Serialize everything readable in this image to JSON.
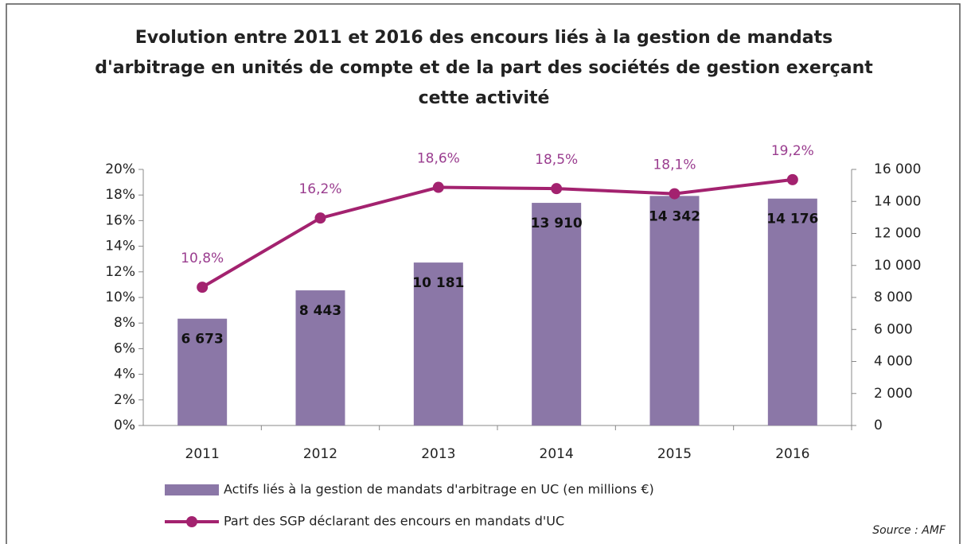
{
  "chart_data": {
    "type": "bar_line",
    "title": [
      "Evolution entre 2011  et 2016  des encours liés à  la gestion de mandats",
      "d'arbitrage en unités de compte et de la part des sociétés de gestion exerçant",
      "cette activité"
    ],
    "categories": [
      "2011",
      "2012",
      "2013",
      "2014",
      "2015",
      "2016"
    ],
    "series": [
      {
        "name": "Actifs liés à la gestion de mandats d'arbitrage en UC (en millions €)",
        "type": "bar",
        "axis": "y2",
        "color": "#8b77a7",
        "values": [
          6673,
          8443,
          10181,
          13910,
          14342,
          14176
        ],
        "value_labels": [
          "6 673",
          "8 443",
          "10 181",
          "13 910",
          "14 342",
          "14 176"
        ]
      },
      {
        "name": "Part des SGP déclarant des encours en mandats d'UC",
        "type": "line",
        "axis": "y",
        "color": "#a3226f",
        "values": [
          10.8,
          16.2,
          18.6,
          18.5,
          18.1,
          19.2
        ],
        "value_labels": [
          "10,8%",
          "16,2%",
          "18,6%",
          "18,5%",
          "18,1%",
          "19,2%"
        ]
      }
    ],
    "ylim": [
      0,
      20
    ],
    "yticks": [
      {
        "value": 0,
        "label": "0%"
      },
      {
        "value": 2,
        "label": "2%"
      },
      {
        "value": 4,
        "label": "4%"
      },
      {
        "value": 6,
        "label": "6%"
      },
      {
        "value": 8,
        "label": "8%"
      },
      {
        "value": 10,
        "label": "10%"
      },
      {
        "value": 12,
        "label": "12%"
      },
      {
        "value": 14,
        "label": "14%"
      },
      {
        "value": 16,
        "label": "16%"
      },
      {
        "value": 18,
        "label": "18%"
      },
      {
        "value": 20,
        "label": "20%"
      }
    ],
    "y2lim": [
      0,
      16000
    ],
    "y2ticks": [
      0,
      {
        "value": 2000,
        "label": "2 000"
      },
      {
        "value": 4000,
        "label": "4 000"
      },
      {
        "value": 6000,
        "label": "6 000"
      },
      {
        "value": 8000,
        "label": "8 000"
      },
      {
        "value": 10000,
        "label": "10 000"
      },
      {
        "value": 12000,
        "label": "12 000"
      },
      {
        "value": 14000,
        "label": "14 000"
      },
      {
        "value": 16000,
        "label": "16 000"
      }
    ],
    "source": "Source : AMF",
    "legend": "bottom-left"
  }
}
